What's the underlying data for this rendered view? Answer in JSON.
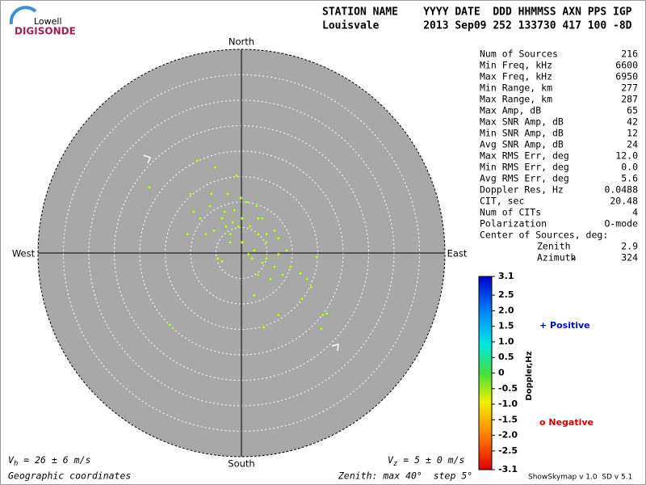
{
  "chart_data": {
    "type": "scatter",
    "north": "North",
    "south": "South",
    "east": "East",
    "west": "West",
    "rlim": [
      0,
      40
    ],
    "rticks": [
      5,
      10,
      15,
      20,
      25,
      30,
      35,
      40
    ],
    "series": [
      {
        "color": "#c6f25a",
        "x": [
          -18.1,
          -8.7,
          -14.1,
          -5.2,
          -1.0,
          -10.0,
          -6.2,
          -3.8,
          -3.0,
          -2.2,
          -1.4,
          -0.2,
          1.0,
          3.0,
          4.1,
          1.7,
          0.2,
          2.5,
          4.9,
          7.3,
          8.9,
          4.9,
          6.5,
          3.3,
          5.7,
          8.1,
          11.6,
          13.7,
          11.9,
          14.8,
          16.0,
          16.8,
          15.7,
          4.4,
          7.3,
          2.5,
          -7.0,
          -10.6,
          -4.6,
          -3.8,
          -2.2,
          -5.4,
          -8.1,
          -9.4,
          4.9,
          3.3,
          1.4,
          4.1,
          2.1,
          7.3,
          0.2,
          -1.7,
          -0.6,
          -3.3,
          -5.9,
          -2.7,
          3.3,
          6.5,
          9.7,
          12.9
        ],
        "y": [
          12.9,
          18.1,
          -14.1,
          16.8,
          15.2,
          11.6,
          9.2,
          6.8,
          5.2,
          3.7,
          8.4,
          10.8,
          10.0,
          9.2,
          6.8,
          5.2,
          2.1,
          0.5,
          2.1,
          2.9,
          0.5,
          -1.1,
          -2.7,
          -4.3,
          -5.1,
          -4.3,
          -4.0,
          -6.7,
          -9.0,
          -0.8,
          -12.2,
          -11.9,
          -14.9,
          -14.6,
          -12.2,
          -8.3,
          3.7,
          3.7,
          -1.1,
          -1.6,
          2.1,
          4.4,
          6.8,
          8.1,
          3.7,
          3.7,
          -0.3,
          -1.9,
          -1.1,
          -0.3,
          6.8,
          6.0,
          5.2,
          8.1,
          11.6,
          11.6,
          6.8,
          4.4,
          -2.7,
          -5.1
        ]
      }
    ]
  },
  "logo": {
    "top": "Lowell",
    "bottom": "DIGISONDE"
  },
  "header": {
    "line1": "STATION NAME    YYYY DATE  DDD HHMMSS AXN PPS IGP",
    "line2": "Louisvale       2013 Sep09 252 133730 417 100 -8D"
  },
  "stats": [
    [
      "Num of Sources",
      "216"
    ],
    [
      "Min Freq, kHz",
      "6600"
    ],
    [
      "Max Freq, kHz",
      "6950"
    ],
    [
      "Min Range, km",
      "277"
    ],
    [
      "Max Range, km",
      "287"
    ],
    [
      "Max Amp, dB",
      "65"
    ],
    [
      "Max SNR Amp, dB",
      "42"
    ],
    [
      "Min SNR Amp, dB",
      "12"
    ],
    [
      "Avg SNR Amp, dB",
      "24"
    ],
    [
      "Max RMS Err, deg",
      "12.0"
    ],
    [
      "Min RMS Err, deg",
      "0.0"
    ],
    [
      "Avg RMS Err, deg",
      "5.6"
    ],
    [
      "Doppler Res, Hz",
      "0.0488"
    ],
    [
      "CIT, sec",
      "20.48"
    ],
    [
      "Num of CITs",
      "4"
    ],
    [
      "Polarization",
      "O-mode"
    ]
  ],
  "center": {
    "title": "Center of Sources, deg:",
    "rows": [
      [
        "Zenith",
        "2.9"
      ],
      [
        "Azimuth",
        "324"
      ]
    ]
  },
  "colorbar": {
    "label": "Doppler,Hz",
    "lim": [
      -3.1,
      3.1
    ],
    "ticks": [
      3.1,
      2.5,
      {
        "value": 2,
        "label": "2.0"
      },
      1.5,
      {
        "value": 1,
        "label": "1.0"
      },
      0.5,
      0,
      -0.5,
      {
        "value": -1,
        "label": "-1.0"
      },
      -1.5,
      {
        "value": -2,
        "label": "-2.0"
      },
      -2.5,
      -3.1
    ],
    "positive": "+ Positive",
    "negative": "o Negative"
  },
  "footer": {
    "vh": "V",
    "vh_sub": "h",
    "vh_rest": " = 26 ± 6 m/s",
    "vz": "V",
    "vz_sub": "z",
    "vz_rest": " = 5 ± 0 m/s",
    "coords": "Geographic coordinates",
    "zenith": "Zenith: max 40°  step 5°",
    "version": "ShowSkymap v 1.0  SD v 5.1"
  }
}
